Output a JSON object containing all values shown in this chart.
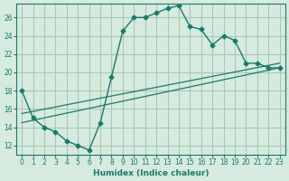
{
  "xlabel": "Humidex (Indice chaleur)",
  "bg_color": "#d6eadf",
  "grid_color": "#a8c8b8",
  "line_color": "#1a7a6a",
  "xlim": [
    -0.5,
    23.5
  ],
  "ylim": [
    11,
    27.5
  ],
  "xticks": [
    0,
    1,
    2,
    3,
    4,
    5,
    6,
    7,
    8,
    9,
    10,
    11,
    12,
    13,
    14,
    15,
    16,
    17,
    18,
    19,
    20,
    21,
    22,
    23
  ],
  "yticks": [
    12,
    14,
    16,
    18,
    20,
    22,
    24,
    26
  ],
  "main_x": [
    0,
    1,
    2,
    3,
    4,
    5,
    6,
    7,
    8,
    9,
    10,
    11,
    12,
    13,
    14,
    15,
    16,
    17,
    18,
    19,
    20,
    21,
    22,
    23
  ],
  "main_y": [
    18,
    15,
    14,
    13.5,
    12.5,
    12,
    11.5,
    14.5,
    19.5,
    24.5,
    26,
    26,
    26.5,
    27,
    27.3,
    25,
    24.7,
    23,
    24,
    23.5,
    21,
    21,
    20.5,
    20.5
  ],
  "trend1_x": [
    0,
    23
  ],
  "trend1_y": [
    14.5,
    20.5
  ],
  "trend2_x": [
    0,
    23
  ],
  "trend2_y": [
    15.5,
    21.0
  ]
}
